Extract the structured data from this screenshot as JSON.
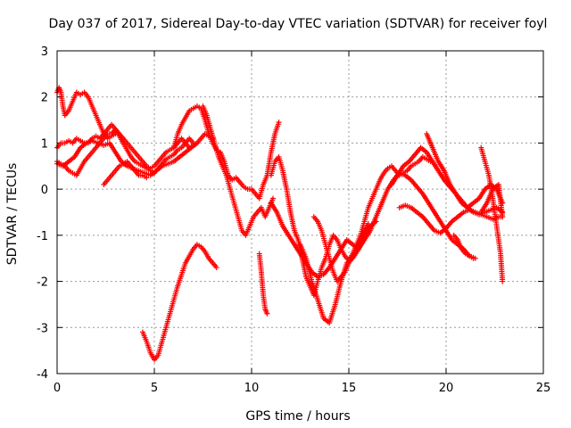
{
  "chart_data": {
    "type": "scatter",
    "title": "Day 037 of 2017, Sidereal Day-to-day VTEC variation (SDTVAR) for receiver foyl",
    "xlabel": "GPS time / hours",
    "ylabel": "SDTVAR / TECUs",
    "xlim": [
      0,
      25
    ],
    "ylim": [
      -4,
      3
    ],
    "xticks": [
      "0",
      "5",
      "10",
      "15",
      "20",
      "25"
    ],
    "yticks": [
      "-4",
      "-3",
      "-2",
      "-1",
      "0",
      "1",
      "2",
      "3"
    ],
    "grid": true,
    "marker": "plus",
    "color": "#ff0000",
    "series": [
      {
        "x": [
          0.0,
          0.2,
          0.4,
          0.6,
          0.8,
          1.0,
          1.2,
          1.4,
          1.6,
          1.8,
          2.0,
          2.2,
          2.4,
          2.6,
          2.8,
          3.0,
          3.2,
          3.4,
          3.6,
          3.8,
          4.0,
          4.2,
          4.4,
          4.6,
          4.8,
          5.0,
          5.2,
          5.4,
          5.6,
          5.8,
          6.0,
          6.2,
          6.4,
          6.6,
          6.8,
          7.0,
          7.2,
          7.4,
          7.6,
          7.8,
          8.0
        ],
        "y": [
          0.9,
          1.0,
          1.0,
          1.05,
          1.0,
          1.1,
          1.05,
          1.0,
          1.0,
          1.1,
          1.15,
          1.1,
          1.2,
          1.3,
          1.4,
          1.3,
          1.2,
          1.1,
          1.0,
          0.9,
          0.8,
          0.7,
          0.6,
          0.5,
          0.45,
          0.5,
          0.6,
          0.7,
          0.8,
          0.85,
          0.9,
          1.0,
          1.1,
          1.0,
          0.9,
          0.95,
          1.0,
          1.1,
          1.2,
          1.15,
          1.1
        ]
      },
      {
        "x": [
          0.0,
          0.1,
          0.2,
          0.3,
          0.4,
          0.6,
          0.8,
          1.0,
          1.2,
          1.4,
          1.6,
          1.8,
          2.0,
          2.2,
          2.4,
          2.6,
          2.8,
          3.0
        ],
        "y": [
          2.1,
          2.2,
          2.1,
          1.8,
          1.6,
          1.7,
          1.9,
          2.1,
          2.05,
          2.1,
          2.0,
          1.8,
          1.6,
          1.4,
          1.2,
          1.1,
          1.15,
          1.2
        ]
      },
      {
        "x": [
          0.0,
          0.2,
          0.4,
          0.6,
          0.8,
          1.0,
          1.2,
          1.4,
          1.6,
          1.8,
          2.0,
          2.2,
          2.4,
          2.6,
          2.8,
          3.0,
          3.2,
          3.4,
          3.6,
          3.8,
          4.0,
          4.2,
          4.4,
          4.6,
          4.8,
          5.0,
          5.2,
          5.4,
          5.6,
          5.8,
          6.0,
          6.2,
          6.4,
          6.6,
          6.8,
          7.0
        ],
        "y": [
          0.6,
          0.55,
          0.5,
          0.4,
          0.35,
          0.3,
          0.45,
          0.6,
          0.7,
          0.8,
          0.9,
          1.0,
          1.1,
          1.2,
          1.2,
          1.3,
          1.15,
          1.0,
          0.85,
          0.7,
          0.6,
          0.55,
          0.5,
          0.45,
          0.4,
          0.35,
          0.45,
          0.55,
          0.65,
          0.7,
          0.75,
          0.85,
          0.9,
          1.0,
          1.1,
          1.0
        ]
      },
      {
        "x": [
          0.0,
          0.3,
          0.6,
          0.9,
          1.2,
          1.5,
          1.8,
          2.1,
          2.4,
          2.7,
          3.0,
          3.3,
          3.6,
          3.9,
          4.2,
          4.5,
          4.8,
          5.1,
          5.4,
          5.7,
          6.0,
          6.3,
          6.6,
          6.9,
          7.2
        ],
        "y": [
          0.55,
          0.5,
          0.6,
          0.7,
          0.9,
          1.0,
          1.05,
          1.0,
          0.95,
          1.0,
          0.8,
          0.6,
          0.5,
          0.45,
          0.4,
          0.35,
          0.3,
          0.4,
          0.5,
          0.55,
          0.6,
          0.7,
          0.8,
          0.9,
          1.0
        ]
      },
      {
        "x": [
          2.4,
          2.6,
          2.8,
          3.0,
          3.2,
          3.4,
          3.6,
          3.8,
          4.0,
          4.2,
          4.4,
          4.6
        ],
        "y": [
          0.1,
          0.2,
          0.3,
          0.4,
          0.5,
          0.55,
          0.6,
          0.5,
          0.4,
          0.3,
          0.3,
          0.25
        ]
      },
      {
        "x": [
          6.0,
          6.2,
          6.4,
          6.6,
          6.8,
          7.0,
          7.2,
          7.4,
          7.6,
          7.8,
          8.0,
          8.2,
          8.4,
          8.6,
          8.8,
          9.0,
          9.2,
          9.4,
          9.6,
          9.8,
          10.0,
          10.2,
          10.4,
          10.6,
          10.8,
          11.0,
          11.2,
          11.4
        ],
        "y": [
          0.9,
          1.2,
          1.4,
          1.55,
          1.7,
          1.75,
          1.8,
          1.75,
          1.5,
          1.2,
          1.0,
          0.85,
          0.8,
          0.6,
          0.3,
          0.2,
          0.25,
          0.15,
          0.05,
          0.0,
          0.0,
          -0.1,
          -0.2,
          0.1,
          0.3,
          0.8,
          1.2,
          1.45
        ]
      },
      {
        "x": [
          7.5,
          7.7,
          7.9,
          8.1,
          8.3,
          8.5,
          8.7,
          8.9,
          9.1,
          9.3,
          9.5,
          9.7,
          9.9,
          10.1,
          10.3,
          10.5,
          10.7,
          10.9,
          11.1
        ],
        "y": [
          1.8,
          1.6,
          1.3,
          1.0,
          0.7,
          0.5,
          0.3,
          0.0,
          -0.3,
          -0.6,
          -0.9,
          -1.0,
          -0.8,
          -0.6,
          -0.5,
          -0.4,
          -0.6,
          -0.4,
          -0.2
        ]
      },
      {
        "x": [
          10.4,
          10.5,
          10.6,
          10.7,
          10.8
        ],
        "y": [
          -1.4,
          -1.8,
          -2.3,
          -2.6,
          -2.7
        ]
      },
      {
        "x": [
          11.0,
          11.2,
          11.4,
          11.6,
          11.8,
          12.0,
          12.2,
          12.4,
          12.6,
          12.8,
          13.0,
          13.2,
          13.4,
          13.6,
          13.8,
          14.0,
          14.2,
          14.4,
          14.6,
          14.8,
          15.0,
          15.2,
          15.4,
          15.6,
          15.8,
          16.0,
          16.2,
          16.4,
          16.6,
          16.8,
          17.0,
          17.2,
          17.4,
          17.6,
          17.8,
          18.0,
          18.2,
          18.4,
          18.6,
          18.8,
          19.0,
          19.2
        ],
        "y": [
          0.3,
          0.6,
          0.7,
          0.4,
          0.0,
          -0.5,
          -0.9,
          -1.1,
          -1.5,
          -1.9,
          -2.1,
          -2.3,
          -2.0,
          -1.7,
          -1.5,
          -1.2,
          -1.0,
          -1.1,
          -1.3,
          -1.45,
          -1.55,
          -1.4,
          -1.2,
          -1.0,
          -0.7,
          -0.4,
          -0.2,
          0.0,
          0.2,
          0.35,
          0.45,
          0.5,
          0.4,
          0.3,
          0.35,
          0.4,
          0.5,
          0.55,
          0.6,
          0.7,
          0.65,
          0.6
        ]
      },
      {
        "x": [
          11.0,
          11.3,
          11.6,
          11.9,
          12.2,
          12.5,
          12.8,
          13.1,
          13.4,
          13.7,
          14.0,
          14.3,
          14.6,
          14.9,
          15.2,
          15.5,
          15.8,
          16.1,
          16.4,
          16.7,
          17.0,
          17.3,
          17.6,
          17.9,
          18.2,
          18.5,
          18.8,
          19.1,
          19.4,
          19.7,
          20.0,
          20.3,
          20.6,
          20.9,
          21.2,
          21.5
        ],
        "y": [
          -0.3,
          -0.5,
          -0.8,
          -1.0,
          -1.2,
          -1.4,
          -1.6,
          -1.8,
          -1.9,
          -1.85,
          -1.7,
          -1.5,
          -1.3,
          -1.1,
          -1.2,
          -1.3,
          -1.1,
          -0.9,
          -0.6,
          -0.3,
          0.0,
          0.2,
          0.35,
          0.3,
          0.2,
          0.05,
          -0.1,
          -0.3,
          -0.5,
          -0.7,
          -0.9,
          -1.1,
          -1.2,
          -1.3,
          -1.45,
          -1.5
        ]
      },
      {
        "x": [
          12.5,
          12.8,
          13.1,
          13.4,
          13.7,
          14.0,
          14.3,
          14.6,
          14.9,
          15.2,
          15.5,
          15.8,
          16.1,
          16.4
        ],
        "y": [
          -1.2,
          -1.5,
          -2.0,
          -2.4,
          -2.8,
          -2.9,
          -2.5,
          -2.0,
          -1.6,
          -1.5,
          -1.3,
          -1.0,
          -0.8,
          -0.7
        ]
      },
      {
        "x": [
          13.2,
          13.4,
          13.6,
          13.8,
          14.0,
          14.2,
          14.4,
          14.6,
          14.8,
          15.0,
          15.2,
          15.4,
          15.6,
          15.8,
          16.0
        ],
        "y": [
          -0.6,
          -0.7,
          -0.9,
          -1.2,
          -1.5,
          -1.8,
          -2.0,
          -1.9,
          -1.8,
          -1.6,
          -1.45,
          -1.3,
          -1.1,
          -0.9,
          -0.75
        ]
      },
      {
        "x": [
          17.2,
          17.5,
          17.8,
          18.1,
          18.4,
          18.7,
          19.0,
          19.3,
          19.6,
          19.9,
          20.2,
          20.5,
          20.8,
          21.1,
          21.4,
          21.7,
          22.0,
          22.3,
          22.6,
          22.9
        ],
        "y": [
          0.1,
          0.3,
          0.5,
          0.6,
          0.75,
          0.9,
          0.8,
          0.6,
          0.4,
          0.2,
          0.05,
          -0.1,
          -0.25,
          -0.4,
          -0.5,
          -0.55,
          -0.5,
          -0.45,
          -0.4,
          -0.5
        ]
      },
      {
        "x": [
          17.6,
          17.9,
          18.2,
          18.5,
          18.8,
          19.1,
          19.4,
          19.7,
          20.0,
          20.3,
          20.6,
          20.9,
          21.2,
          21.5,
          21.8,
          22.1,
          22.4,
          22.7,
          22.9
        ],
        "y": [
          -0.4,
          -0.35,
          -0.4,
          -0.5,
          -0.6,
          -0.75,
          -0.9,
          -0.95,
          -0.85,
          -0.7,
          -0.6,
          -0.5,
          -0.45,
          -0.5,
          -0.55,
          -0.6,
          -0.65,
          -0.6,
          -0.6
        ]
      },
      {
        "x": [
          19.0,
          19.3,
          19.6,
          19.9,
          20.2,
          20.5,
          20.8,
          21.1,
          21.4,
          21.7,
          22.0,
          22.3,
          22.6,
          22.9
        ],
        "y": [
          1.2,
          0.9,
          0.6,
          0.4,
          0.1,
          -0.1,
          -0.3,
          -0.4,
          -0.3,
          -0.2,
          0.0,
          0.1,
          0.0,
          -0.3
        ]
      },
      {
        "x": [
          21.8,
          22.0,
          22.2,
          22.4,
          22.6,
          22.8,
          22.9
        ],
        "y": [
          0.9,
          0.6,
          0.3,
          -0.2,
          -0.8,
          -1.4,
          -2.0
        ]
      },
      {
        "x": [
          21.8,
          22.1,
          22.4,
          22.7,
          22.9
        ],
        "y": [
          -0.5,
          -0.3,
          0.0,
          0.1,
          -0.6
        ]
      },
      {
        "x": [
          20.4,
          20.6,
          20.8,
          21.0,
          21.2,
          21.4
        ],
        "y": [
          -1.0,
          -1.1,
          -1.3,
          -1.4,
          -1.45,
          -1.5
        ]
      },
      {
        "x": [
          4.4,
          4.6,
          4.8,
          5.0,
          5.2,
          5.4,
          5.6,
          5.8,
          6.0,
          6.2,
          6.4,
          6.6,
          6.8,
          7.0,
          7.2,
          7.4,
          7.6,
          7.8,
          8.0,
          8.2
        ],
        "y": [
          -3.1,
          -3.3,
          -3.55,
          -3.7,
          -3.6,
          -3.3,
          -3.0,
          -2.7,
          -2.4,
          -2.1,
          -1.85,
          -1.6,
          -1.45,
          -1.3,
          -1.2,
          -1.25,
          -1.35,
          -1.5,
          -1.6,
          -1.7
        ]
      }
    ]
  }
}
